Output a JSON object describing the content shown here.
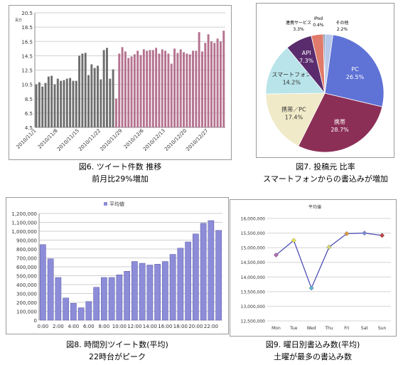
{
  "captions": {
    "fig6_title": "図6. ツイート件数 推移",
    "fig6_sub": "前月比29%増加",
    "fig7_title": "図7. 投稿元 比率",
    "fig7_sub": "スマートフォンからの書込みが増加",
    "fig8_title": "図8. 時間別ツイート数(平均)",
    "fig8_sub": "22時台がピーク",
    "fig9_title": "図9. 曜日別書込み数(平均)",
    "fig9_sub": "土曜が最多の書込み数"
  },
  "chart_data": [
    {
      "id": "fig6",
      "type": "bar",
      "ylabel": "百万",
      "ylim": [
        4.5,
        20.5
      ],
      "yticks": [
        "4.5",
        "6.5",
        "8.5",
        "10.5",
        "12.5",
        "14.5",
        "16.5",
        "18.5",
        "20.5"
      ],
      "xticks": [
        {
          "day": 1,
          "label": "2010/11/1"
        },
        {
          "day": 8,
          "label": "2010/11/8"
        },
        {
          "day": 15,
          "label": "2010/11/15"
        },
        {
          "day": 22,
          "label": "2010/11/22"
        },
        {
          "day": 29,
          "label": "2010/11/29"
        },
        {
          "day": 36,
          "label": "2010/12/6"
        },
        {
          "day": 43,
          "label": "2010/12/13"
        },
        {
          "day": 50,
          "label": "2010/12/20"
        },
        {
          "day": 57,
          "label": "2010/12/27"
        }
      ],
      "grid": true,
      "series": [
        {
          "color": "#6e6e6e",
          "values": [
            10.5,
            10.8,
            10.2,
            10.7,
            11.6,
            11.7,
            10.5,
            11.3,
            11.0,
            11.1,
            11.3,
            11.4,
            11.0,
            11.0,
            14.5,
            14.8,
            14.9,
            11.8,
            13.3,
            12.8,
            13.1,
            11.2,
            15.3,
            15.6,
            11.3,
            12.6
          ]
        },
        {
          "color": "#b5728f",
          "values": [
            8.5,
            14.8,
            15.7,
            15.1,
            14.2,
            14.4,
            14.7,
            15.2,
            14.6,
            15.4,
            15.2,
            15.3,
            15.3,
            15.6,
            14.8,
            15.4,
            15.2,
            14.8,
            13.4,
            15.5,
            14.9,
            15.4,
            15.0,
            14.8,
            14.7,
            15.2,
            15.2,
            17.8,
            15.1,
            16.3,
            17.5,
            16.5,
            16.3,
            16.9,
            16.5,
            18.0
          ]
        }
      ]
    },
    {
      "id": "fig7",
      "type": "pie",
      "slices": [
        {
          "label": "PC",
          "value": 26.5,
          "pct": "26.5%",
          "color": "#5f72d6"
        },
        {
          "label": "携帯",
          "value": 28.7,
          "pct": "28.7%",
          "color": "#8c2f56"
        },
        {
          "label": "携帯／PC",
          "value": 17.4,
          "pct": "17.4%",
          "color": "#f0eac8"
        },
        {
          "label": "スマートフォン",
          "value": 14.2,
          "pct": "14.2%",
          "color": "#b8e4ea"
        },
        {
          "label": "API",
          "value": 7.3,
          "pct": "7.3%",
          "color": "#5a2c6e"
        },
        {
          "label": "連携サービス",
          "value": 3.3,
          "pct": "3.3%",
          "color": "#e07a6a"
        },
        {
          "label": "iPod",
          "value": 0.4,
          "pct": "0.4%",
          "color": "#3c5a8a"
        },
        {
          "label": "その他",
          "value": 2.2,
          "pct": "2.2%",
          "color": "#b8c8ea"
        }
      ]
    },
    {
      "id": "fig8",
      "type": "bar",
      "legend": "平均値",
      "ylim": [
        0,
        1200000
      ],
      "yticks": [
        "0",
        "100,000",
        "200,000",
        "300,000",
        "400,000",
        "500,000",
        "600,000",
        "700,000",
        "800,000",
        "900,000",
        "1,000,000",
        "1,100,000",
        "1,200,000"
      ],
      "categories": [
        "0:00",
        "1:00",
        "2:00",
        "3:00",
        "4:00",
        "5:00",
        "6:00",
        "7:00",
        "8:00",
        "9:00",
        "10:00",
        "11:00",
        "12:00",
        "13:00",
        "14:00",
        "15:00",
        "16:00",
        "17:00",
        "18:00",
        "19:00",
        "20:00",
        "21:00",
        "22:00",
        "23:00"
      ],
      "xlabels": [
        "0:00",
        "2:00",
        "4:00",
        "6:00",
        "8:00",
        "10:00",
        "12:00",
        "14:00",
        "16:00",
        "18:00",
        "20:00",
        "22:00"
      ],
      "values": [
        850000,
        690000,
        480000,
        250000,
        190000,
        140000,
        210000,
        370000,
        480000,
        480000,
        510000,
        550000,
        660000,
        640000,
        620000,
        630000,
        660000,
        740000,
        810000,
        880000,
        970000,
        1090000,
        1120000,
        1010000
      ],
      "color": "#8c8cd8",
      "grid": true
    },
    {
      "id": "fig9",
      "type": "line",
      "legend": "平均値",
      "ylim": [
        12500000,
        16000000
      ],
      "yticks": [
        "12,500,000",
        "13,000,000",
        "13,500,000",
        "14,000,000",
        "14,500,000",
        "15,000,000",
        "15,500,000",
        "16,000,000"
      ],
      "categories": [
        "Mon",
        "Tue",
        "Wed",
        "Thu",
        "Fri",
        "Sat",
        "Sun"
      ],
      "values": [
        14750000,
        15250000,
        13620000,
        15020000,
        15480000,
        15500000,
        15420000
      ],
      "marker_colors": [
        "#b06ab0",
        "#e8e84a",
        "#5ab8d8",
        "#d8d870",
        "#e09a3a",
        "#7a8ad8",
        "#c04040"
      ],
      "line_color": "#5050b8",
      "grid": true
    }
  ]
}
